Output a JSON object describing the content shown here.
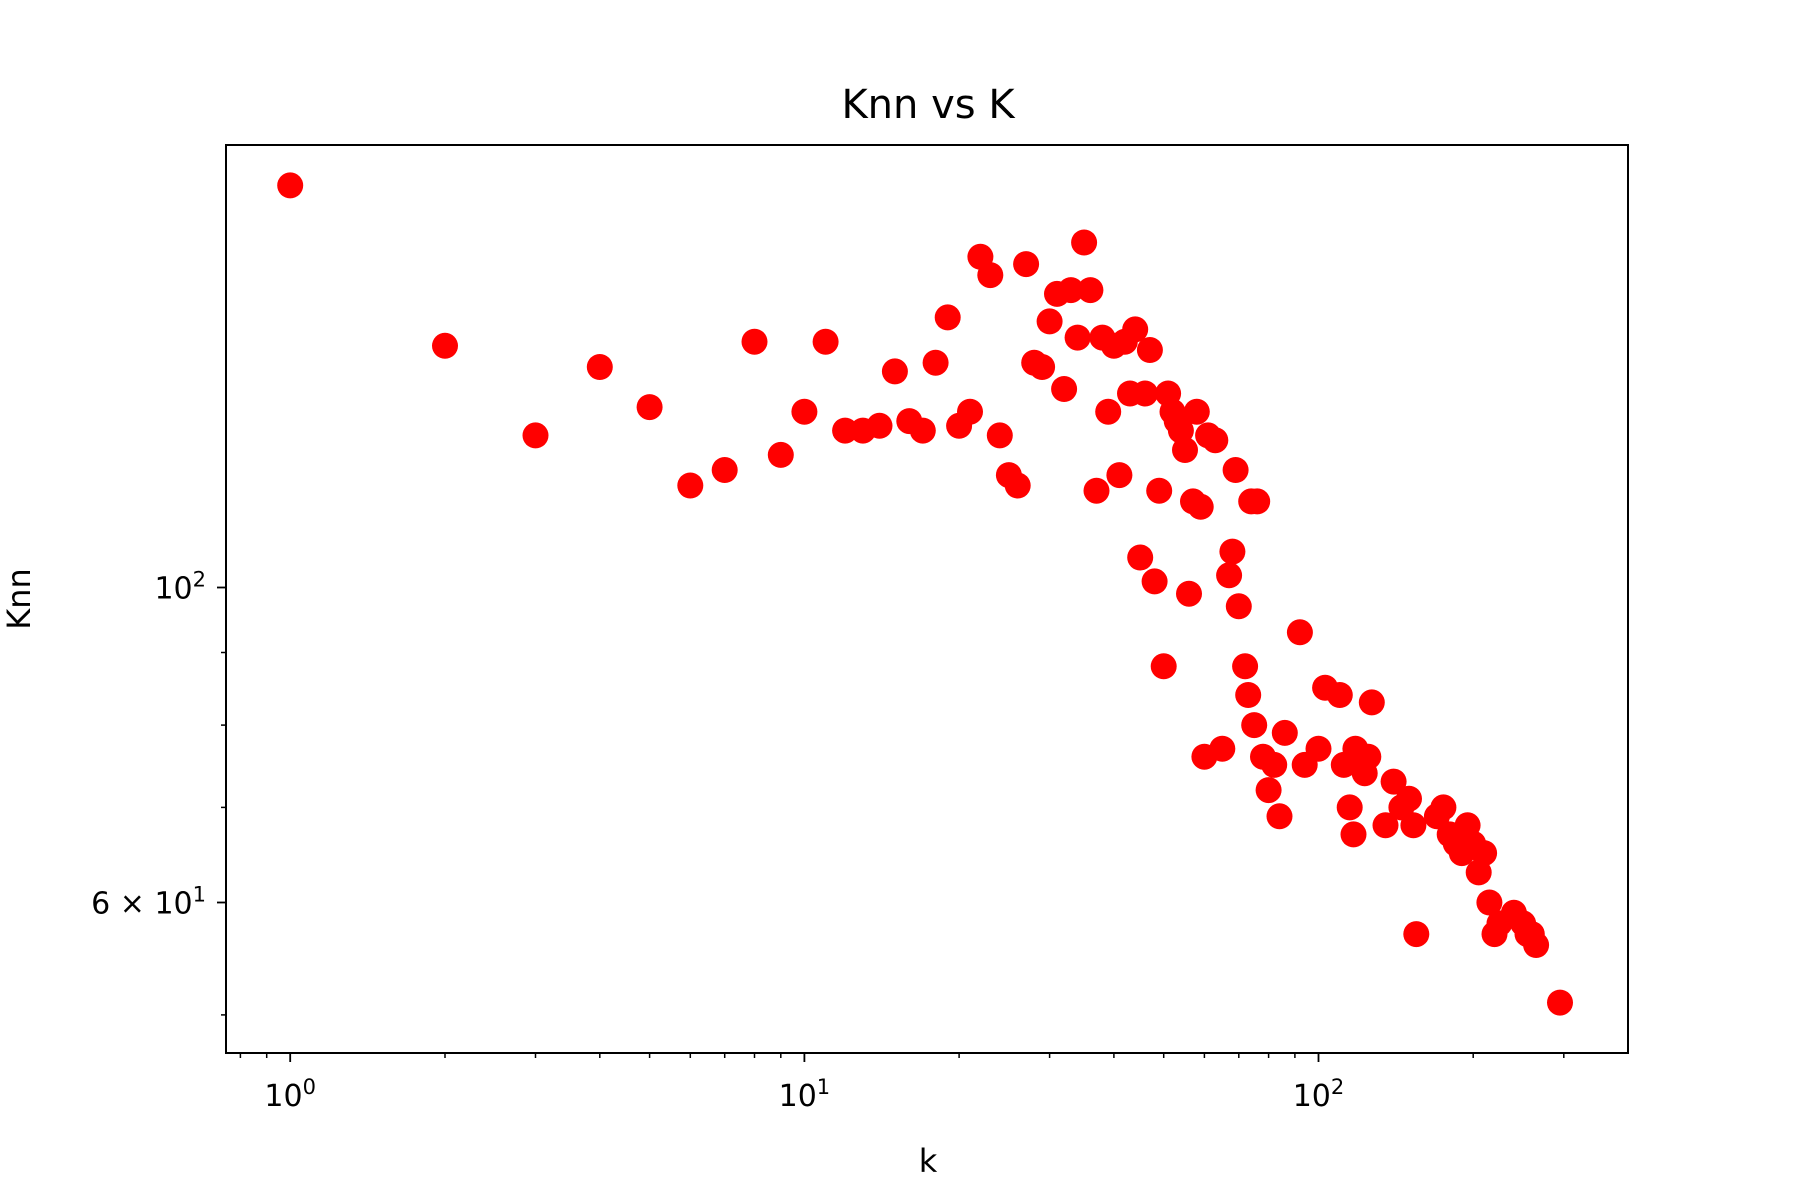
{
  "chart_data": {
    "type": "scatter",
    "title": "Knn vs K",
    "xlabel": "k",
    "ylabel": "Knn",
    "xscale": "log",
    "yscale": "log",
    "xlim": [
      0.75,
      400
    ],
    "ylim": [
      47,
      205
    ],
    "grid": false,
    "marker_color": "#ff0000",
    "x_ticks": [
      {
        "value": 1,
        "base": "10",
        "exp": "0"
      },
      {
        "value": 10,
        "base": "10",
        "exp": "1"
      },
      {
        "value": 100,
        "base": "10",
        "exp": "2"
      }
    ],
    "y_ticks": [
      {
        "value": 100,
        "prefix": "",
        "base": "10",
        "exp": "2"
      },
      {
        "value": 60,
        "prefix": "6 × ",
        "base": "10",
        "exp": "1"
      }
    ],
    "y_minor_ticks": [
      50,
      70,
      80,
      90
    ],
    "x_minor_ticks": [
      0.8,
      0.9,
      2,
      3,
      4,
      5,
      6,
      7,
      8,
      9,
      20,
      30,
      40,
      50,
      60,
      70,
      80,
      90,
      200,
      300
    ],
    "points": [
      [
        1,
        192
      ],
      [
        2,
        148
      ],
      [
        3,
        128
      ],
      [
        4,
        143
      ],
      [
        5,
        134
      ],
      [
        6,
        118
      ],
      [
        7,
        121
      ],
      [
        8,
        149
      ],
      [
        9,
        124
      ],
      [
        10,
        133
      ],
      [
        11,
        149
      ],
      [
        12,
        129
      ],
      [
        13,
        129
      ],
      [
        14,
        130
      ],
      [
        15,
        142
      ],
      [
        16,
        131
      ],
      [
        17,
        129
      ],
      [
        18,
        144
      ],
      [
        19,
        155
      ],
      [
        20,
        130
      ],
      [
        21,
        133
      ],
      [
        22,
        171
      ],
      [
        23,
        166
      ],
      [
        24,
        128
      ],
      [
        25,
        120
      ],
      [
        26,
        118
      ],
      [
        27,
        169
      ],
      [
        28,
        144
      ],
      [
        29,
        143
      ],
      [
        30,
        154
      ],
      [
        31,
        161
      ],
      [
        32,
        138
      ],
      [
        33,
        162
      ],
      [
        34,
        150
      ],
      [
        35,
        175
      ],
      [
        36,
        162
      ],
      [
        37,
        117
      ],
      [
        38,
        150
      ],
      [
        39,
        133
      ],
      [
        40,
        148
      ],
      [
        41,
        120
      ],
      [
        42,
        149
      ],
      [
        43,
        137
      ],
      [
        44,
        152
      ],
      [
        45,
        105
      ],
      [
        46,
        137
      ],
      [
        47,
        147
      ],
      [
        48,
        101
      ],
      [
        49,
        117
      ],
      [
        50,
        88
      ],
      [
        51,
        137
      ],
      [
        52,
        133
      ],
      [
        53,
        131
      ],
      [
        54,
        129
      ],
      [
        55,
        125
      ],
      [
        56,
        99
      ],
      [
        57,
        115
      ],
      [
        58,
        133
      ],
      [
        59,
        114
      ],
      [
        60,
        76
      ],
      [
        61,
        128
      ],
      [
        63,
        127
      ],
      [
        65,
        77
      ],
      [
        67,
        102
      ],
      [
        68,
        106
      ],
      [
        69,
        121
      ],
      [
        70,
        97
      ],
      [
        72,
        88
      ],
      [
        73,
        84
      ],
      [
        74,
        115
      ],
      [
        75,
        80
      ],
      [
        76,
        115
      ],
      [
        78,
        76
      ],
      [
        80,
        72
      ],
      [
        82,
        75
      ],
      [
        84,
        69
      ],
      [
        86,
        79
      ],
      [
        92,
        93
      ],
      [
        94,
        75
      ],
      [
        100,
        77
      ],
      [
        103,
        85
      ],
      [
        110,
        84
      ],
      [
        112,
        75
      ],
      [
        115,
        70
      ],
      [
        117,
        67
      ],
      [
        118,
        77
      ],
      [
        120,
        76
      ],
      [
        123,
        74
      ],
      [
        125,
        76
      ],
      [
        127,
        83
      ],
      [
        135,
        68
      ],
      [
        140,
        73
      ],
      [
        145,
        70
      ],
      [
        150,
        71
      ],
      [
        153,
        68
      ],
      [
        155,
        57
      ],
      [
        170,
        69
      ],
      [
        175,
        70
      ],
      [
        180,
        67
      ],
      [
        185,
        66
      ],
      [
        190,
        65
      ],
      [
        195,
        68
      ],
      [
        200,
        66
      ],
      [
        205,
        63
      ],
      [
        210,
        65
      ],
      [
        215,
        60
      ],
      [
        220,
        57
      ],
      [
        225,
        58
      ],
      [
        240,
        59
      ],
      [
        250,
        58
      ],
      [
        255,
        57
      ],
      [
        260,
        57
      ],
      [
        265,
        56
      ],
      [
        295,
        51
      ]
    ]
  }
}
